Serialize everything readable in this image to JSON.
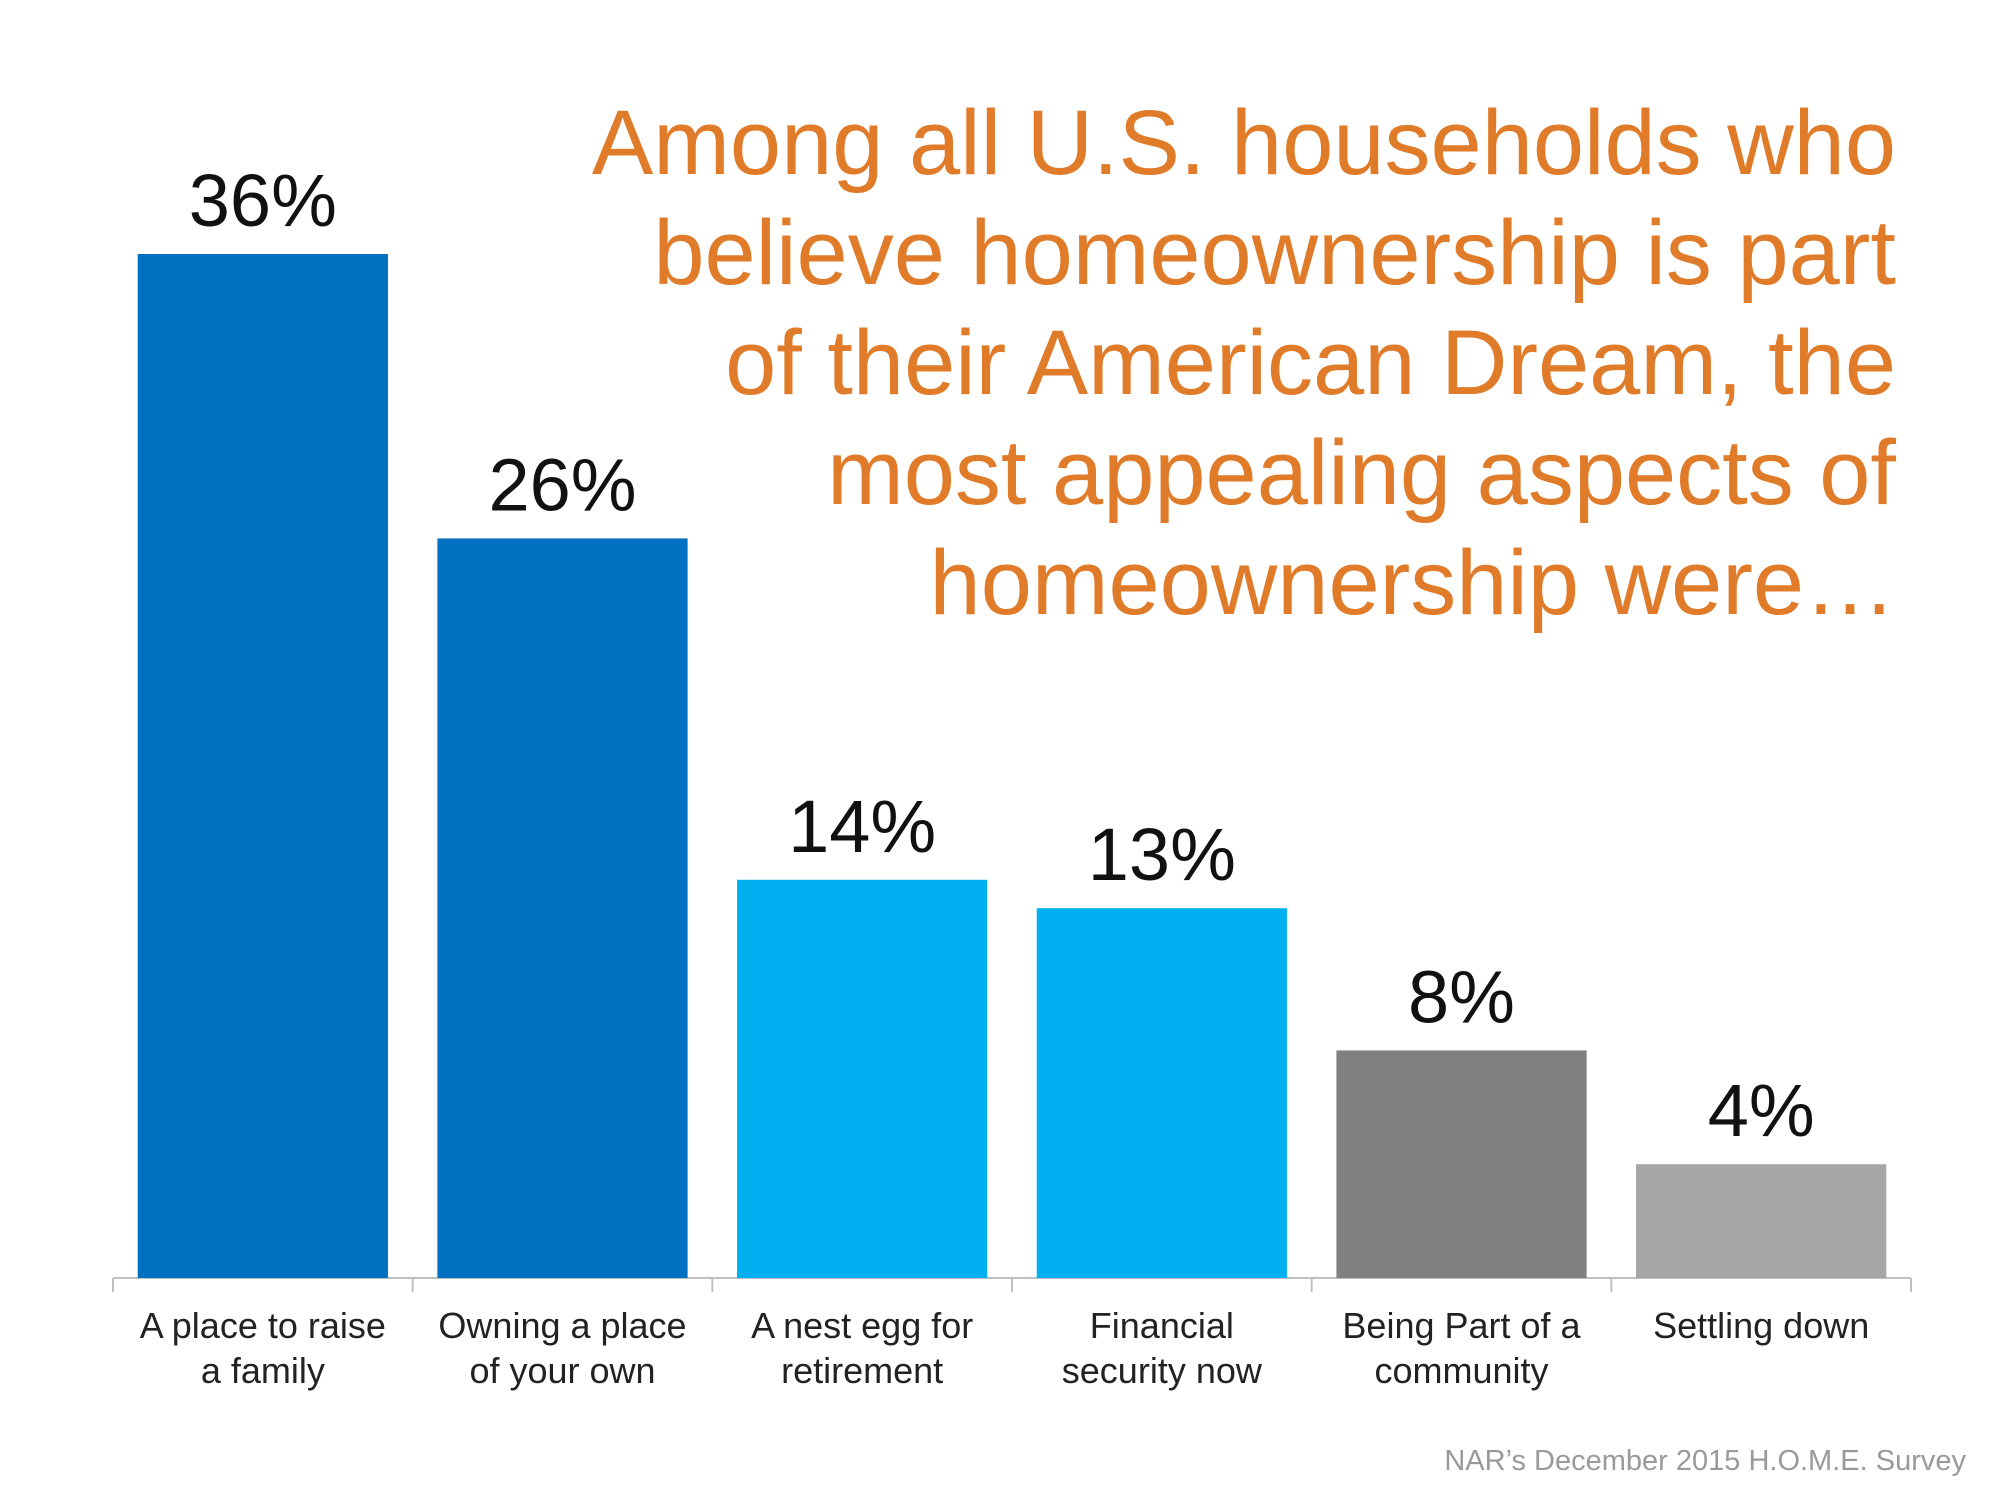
{
  "title_lines": [
    "Among all U.S. households who",
    "believe homeownership is part",
    "of their American Dream, the",
    "most appealing aspects of",
    "homeownership were…"
  ],
  "source": "NAR’s December 2015 H.O.M.E. Survey",
  "chart_data": {
    "type": "bar",
    "title": "Among all U.S. households who believe homeownership is part of their American Dream, the most appealing aspects of homeownership were…",
    "xlabel": "",
    "ylabel": "",
    "ylim": [
      0,
      40
    ],
    "grid": false,
    "categories": [
      [
        "A place to raise",
        "a family"
      ],
      [
        "Owning a place",
        "of your own"
      ],
      [
        "A nest egg for",
        "retirement"
      ],
      [
        "Financial",
        "security now"
      ],
      [
        "Being Part of a",
        "community"
      ],
      [
        "Settling down"
      ]
    ],
    "values": [
      36,
      26,
      14,
      13,
      8,
      4
    ],
    "labels": [
      "36%",
      "26%",
      "14%",
      "13%",
      "8%",
      "4%"
    ],
    "colors": [
      "#0070C0",
      "#0070C0",
      "#00B0F0",
      "#00B0F0",
      "#808080",
      "#A6A6A6"
    ]
  }
}
